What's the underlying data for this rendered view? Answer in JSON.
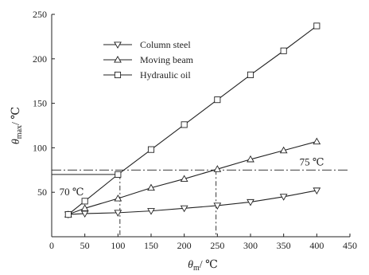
{
  "chart_data": {
    "type": "line",
    "xlabel": {
      "symbol": "θ",
      "sub": "m",
      "unit": "/ ℃"
    },
    "ylabel": {
      "symbol": "θ",
      "sub": "max",
      "unit": "/ ℃"
    },
    "xlim": [
      0,
      450
    ],
    "ylim": [
      0,
      250
    ],
    "xticks": [
      0,
      50,
      100,
      150,
      200,
      250,
      300,
      350,
      400,
      450
    ],
    "yticks": [
      50,
      100,
      150,
      200,
      250
    ],
    "grid": false,
    "legend_position": "top-left",
    "series": [
      {
        "name": "Column steel",
        "marker": "triangle-down",
        "x": [
          25,
          50,
          100,
          150,
          200,
          250,
          300,
          350,
          400
        ],
        "y": [
          25,
          26,
          27,
          29,
          32,
          35,
          39,
          45,
          52
        ]
      },
      {
        "name": "Moving beam",
        "marker": "triangle-up",
        "x": [
          25,
          50,
          100,
          150,
          200,
          250,
          300,
          350,
          400
        ],
        "y": [
          25,
          32,
          43,
          55,
          65,
          76,
          87,
          97,
          107
        ]
      },
      {
        "name": "Hydraulic oil",
        "marker": "square",
        "x": [
          25,
          50,
          100,
          150,
          200,
          250,
          300,
          350,
          400
        ],
        "y": [
          25,
          40,
          70,
          98,
          126,
          154,
          182,
          209,
          237
        ]
      }
    ],
    "reference_lines": [
      {
        "orientation": "horizontal",
        "value": 75,
        "label": "75 ℃"
      },
      {
        "orientation": "horizontal",
        "value": 70,
        "label": "70 ℃"
      }
    ],
    "guide_lines": [
      {
        "orientation": "vertical",
        "value": 103,
        "to_y": 70
      },
      {
        "orientation": "vertical",
        "value": 248,
        "to_y": 75
      }
    ]
  }
}
